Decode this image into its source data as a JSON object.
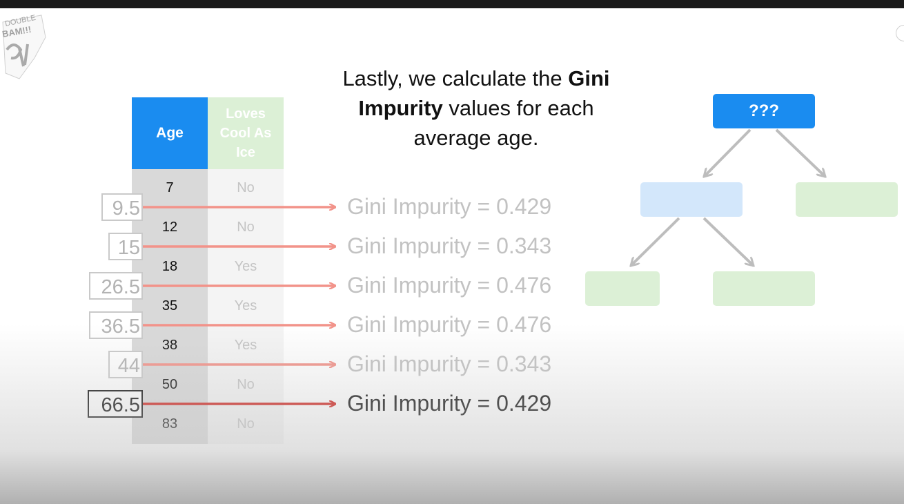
{
  "title": {
    "part1": "Lastly, we calculate the ",
    "bold1": "Gini",
    "bold2": "Impurity",
    "part2": " values for each",
    "part3": "average age."
  },
  "logo": {
    "text_top": "DOUBLE",
    "text_mid": "BAM!!!"
  },
  "table": {
    "headers": {
      "age": "Age",
      "loves_line1": "Loves",
      "loves_line2": "Cool As",
      "loves_line3": "Ice"
    },
    "rows": [
      {
        "age": "7",
        "loves": "No"
      },
      {
        "age": "12",
        "loves": "No"
      },
      {
        "age": "18",
        "loves": "Yes"
      },
      {
        "age": "35",
        "loves": "Yes"
      },
      {
        "age": "38",
        "loves": "Yes"
      },
      {
        "age": "50",
        "loves": "No"
      },
      {
        "age": "83",
        "loves": "No"
      }
    ]
  },
  "averages": [
    {
      "value": "9.5",
      "gini": "Gini Impurity = 0.429"
    },
    {
      "value": "15",
      "gini": "Gini Impurity = 0.343"
    },
    {
      "value": "26.5",
      "gini": "Gini Impurity = 0.476"
    },
    {
      "value": "36.5",
      "gini": "Gini Impurity = 0.476"
    },
    {
      "value": "44",
      "gini": "Gini Impurity = 0.343"
    },
    {
      "value": "66.5",
      "gini": "Gini Impurity = 0.429"
    }
  ],
  "active_index": 5,
  "tree": {
    "root_label": "???"
  },
  "colors": {
    "header_blue": "#1a8cf0",
    "arrow_faded": "#f2938a",
    "arrow_active": "#d0211b",
    "leaf_green": "#dcf0d6",
    "node_blue_light": "#d3e7fb"
  }
}
